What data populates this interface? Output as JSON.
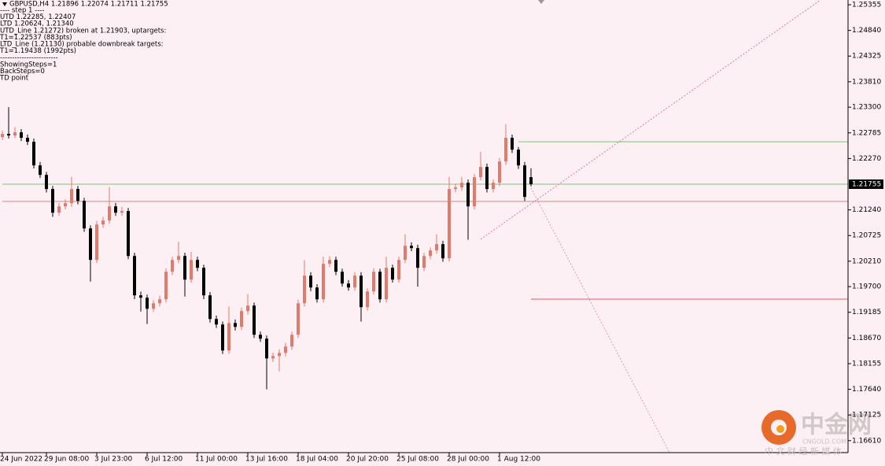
{
  "chart_data": {
    "type": "candlestick",
    "header": "GBPUSD,H4  1.21896 1.22074 1.21711 1.21755",
    "info_lines": [
      "---- step 1 ----",
      "UTD 1.22285, 1.22407",
      "LTD 1.20624, 1.21340",
      "UTD_Line 1.21272) broken at 1.21903, uptargets:",
      "T1=1.22537 (883pts)",
      "LTD_Line (1.21130) probable downbreak targets:",
      "T1=1.19438 (1992pts)",
      "------------------------",
      "ShowingSteps=1",
      "BackSteps=0",
      "TD point"
    ],
    "categories": [
      "24 Jun 2022",
      null,
      null,
      null,
      null,
      null,
      null,
      "29 Jun 08:00",
      null,
      null,
      null,
      null,
      null,
      null,
      null,
      "3 Jul 23:00",
      null,
      null,
      null,
      null,
      null,
      null,
      null,
      "6 Jul 12:00",
      null,
      null,
      null,
      null,
      null,
      null,
      null,
      "11 Jul 00:00",
      null,
      null,
      null,
      null,
      null,
      null,
      null,
      "13 Jul 16:00",
      null,
      null,
      null,
      null,
      null,
      null,
      null,
      "18 Jul 04:00",
      null,
      null,
      null,
      null,
      null,
      null,
      null,
      "20 Jul 20:00",
      null,
      null,
      null,
      null,
      null,
      null,
      null,
      "25 Jul 08:00",
      null,
      null,
      null,
      null,
      null,
      null,
      null,
      "28 Jul 00:00",
      null,
      null,
      null,
      null,
      null,
      null,
      null,
      "1 Aug 12:00",
      null,
      null,
      null,
      null,
      null
    ],
    "open": [
      1.227,
      1.22764,
      1.22732,
      1.22796,
      1.22685,
      1.22606,
      1.22132,
      1.21942,
      1.21658,
      1.21184,
      1.2131,
      1.21374,
      1.21658,
      1.21421,
      1.20868,
      1.20236,
      1.20947,
      1.21026,
      1.2131,
      1.21184,
      1.21216,
      1.20315,
      1.19525,
      1.19478,
      1.19256,
      1.19367,
      1.19446,
      1.19999,
      1.20236,
      1.20315,
      1.19841,
      1.20236,
      1.20078,
      1.19525,
      1.19051,
      1.1894,
      1.18419,
      1.1897,
      1.18893,
      1.19209,
      1.1932,
      1.18735,
      1.18656,
      1.1826,
      1.18308,
      1.18371,
      1.18498,
      1.18735,
      1.19367,
      1.1992,
      1.19683,
      1.19446,
      1.20157,
      1.20236,
      1.19999,
      1.19762,
      1.19683,
      1.1992,
      1.19288,
      1.19604,
      1.19999,
      1.19446,
      1.20078,
      1.19841,
      1.20236,
      1.2052,
      1.20473,
      1.20078,
      1.20315,
      1.20426,
      1.20552,
      1.20268,
      1.21658,
      1.2169,
      1.21784,
      1.2131,
      1.21895,
      1.221,
      1.21658,
      1.21784,
      1.22211,
      1.22685,
      1.22448,
      1.22132,
      1.21896
    ],
    "high": [
      1.2283,
      1.233,
      1.229,
      1.2286,
      1.2275,
      1.2267,
      1.222,
      1.22,
      1.2172,
      1.2138,
      1.2145,
      1.219,
      1.2172,
      1.2148,
      1.2093,
      1.2102,
      1.211,
      1.217,
      1.2138,
      1.213,
      1.2128,
      1.2038,
      1.196,
      1.1954,
      1.1943,
      1.1952,
      1.2007,
      1.203,
      1.206,
      1.2038,
      1.204,
      1.203,
      1.2014,
      1.1959,
      1.1912,
      1.19,
      1.193,
      1.1904,
      1.1928,
      1.1955,
      1.1938,
      1.188,
      1.1872,
      1.1838,
      1.1844,
      1.1857,
      1.188,
      1.1944,
      1.2023,
      1.1999,
      1.1975,
      1.203,
      1.2031,
      1.203,
      1.2006,
      1.1983,
      1.1999,
      1.1999,
      1.1967,
      1.2007,
      1.2006,
      1.203,
      1.2014,
      1.203,
      1.2075,
      1.2059,
      1.2054,
      1.2038,
      1.2049,
      1.2075,
      1.2062,
      1.219,
      1.2176,
      1.219,
      1.2185,
      1.2196,
      1.224,
      1.2217,
      1.2185,
      1.2228,
      1.2296,
      1.2275,
      1.225,
      1.222,
      1.22074
    ],
    "low": [
      1.2264,
      1.2267,
      1.2268,
      1.2262,
      1.2254,
      1.2207,
      1.2188,
      1.2159,
      1.211,
      1.2112,
      1.2125,
      1.213,
      1.2135,
      1.208,
      1.198,
      1.2017,
      1.2088,
      1.2096,
      1.2112,
      1.2112,
      1.2025,
      1.1945,
      1.192,
      1.1895,
      1.1919,
      1.193,
      1.1938,
      1.1993,
      1.2017,
      1.195,
      1.1978,
      1.2001,
      1.1945,
      1.1898,
      1.1887,
      1.1835,
      1.1835,
      1.1882,
      1.1883,
      1.1914,
      1.1867,
      1.1859,
      1.1764,
      1.1819,
      1.18,
      1.183,
      1.1843,
      1.1867,
      1.193,
      1.1961,
      1.1938,
      1.1938,
      1.2009,
      1.1993,
      1.197,
      1.1962,
      1.1962,
      1.19,
      1.1922,
      1.1954,
      1.1938,
      1.1938,
      1.1978,
      1.1978,
      1.2017,
      1.2041,
      1.197,
      1.2001,
      1.2025,
      1.2036,
      1.202,
      1.202,
      1.2159,
      1.2162,
      1.2064,
      1.2125,
      1.2183,
      1.2159,
      1.2159,
      1.2172,
      1.2214,
      1.2238,
      1.2206,
      1.2142,
      1.21711
    ],
    "close": [
      1.22764,
      1.22732,
      1.22796,
      1.22685,
      1.22606,
      1.22132,
      1.21942,
      1.21658,
      1.21184,
      1.2131,
      1.21374,
      1.21658,
      1.21421,
      1.20868,
      1.20236,
      1.20947,
      1.21026,
      1.2131,
      1.21184,
      1.21216,
      1.20315,
      1.19525,
      1.19478,
      1.19256,
      1.19367,
      1.19446,
      1.19999,
      1.20236,
      1.20315,
      1.19841,
      1.20236,
      1.20078,
      1.19525,
      1.19051,
      1.1894,
      1.18419,
      1.1897,
      1.18893,
      1.19209,
      1.1932,
      1.18735,
      1.18656,
      1.1826,
      1.18308,
      1.18371,
      1.18498,
      1.18735,
      1.19367,
      1.1992,
      1.19683,
      1.19446,
      1.20157,
      1.20236,
      1.19999,
      1.19762,
      1.19683,
      1.1992,
      1.19288,
      1.19604,
      1.19999,
      1.19446,
      1.20078,
      1.19841,
      1.20236,
      1.2052,
      1.20473,
      1.20078,
      1.20315,
      1.20426,
      1.20552,
      1.20268,
      1.21658,
      1.2169,
      1.21784,
      1.2131,
      1.21895,
      1.221,
      1.21658,
      1.21784,
      1.22211,
      1.22685,
      1.22448,
      1.22132,
      1.215,
      1.21755
    ],
    "up_color": "#e07a6a",
    "down_color": "#000000",
    "ylim": [
      1.1637,
      1.2545
    ],
    "yticks": [
      1.25355,
      {
        "value": 1.2484,
        "label": "1.24840"
      },
      1.24325,
      {
        "value": 1.2381,
        "label": "1.23810"
      },
      {
        "value": 1.233,
        "label": "1.23300"
      },
      1.22785,
      {
        "value": 1.2227,
        "label": "1.22270"
      },
      {
        "value": 1.2124,
        "label": "1.21240"
      },
      1.20725,
      {
        "value": 1.2021,
        "label": "1.20210"
      },
      {
        "value": 1.197,
        "label": "1.19700"
      },
      1.19185,
      {
        "value": 1.1867,
        "label": "1.18670"
      },
      1.18155,
      {
        "value": 1.1764,
        "label": "1.17640"
      },
      1.17125,
      {
        "value": 1.1661,
        "label": "1.16610"
      }
    ],
    "last_price": 1.21755,
    "levels": [
      {
        "value": 1.22606,
        "color": "#7cc47c",
        "from": 82
      },
      {
        "value": 1.21755,
        "color": "#7cc47c",
        "from": 0
      },
      {
        "value": 1.2141,
        "color": "#e08080",
        "from": 0
      },
      {
        "value": 1.1945,
        "color": "#e06060",
        "from": 84
      }
    ],
    "trendlines": [
      {
        "from": [
          76,
          1.2065
        ],
        "to": [
          130,
          1.2545
        ],
        "color": "#e07a9a"
      },
      {
        "from": [
          84,
          1.2168
        ],
        "to": [
          106,
          1.1637
        ],
        "color": "#d8a0a0"
      }
    ],
    "watermark": {
      "name": "中金网",
      "domain": "CNGOLD.COM",
      "slogan": "中 文 财 经 新 媒 体"
    }
  }
}
